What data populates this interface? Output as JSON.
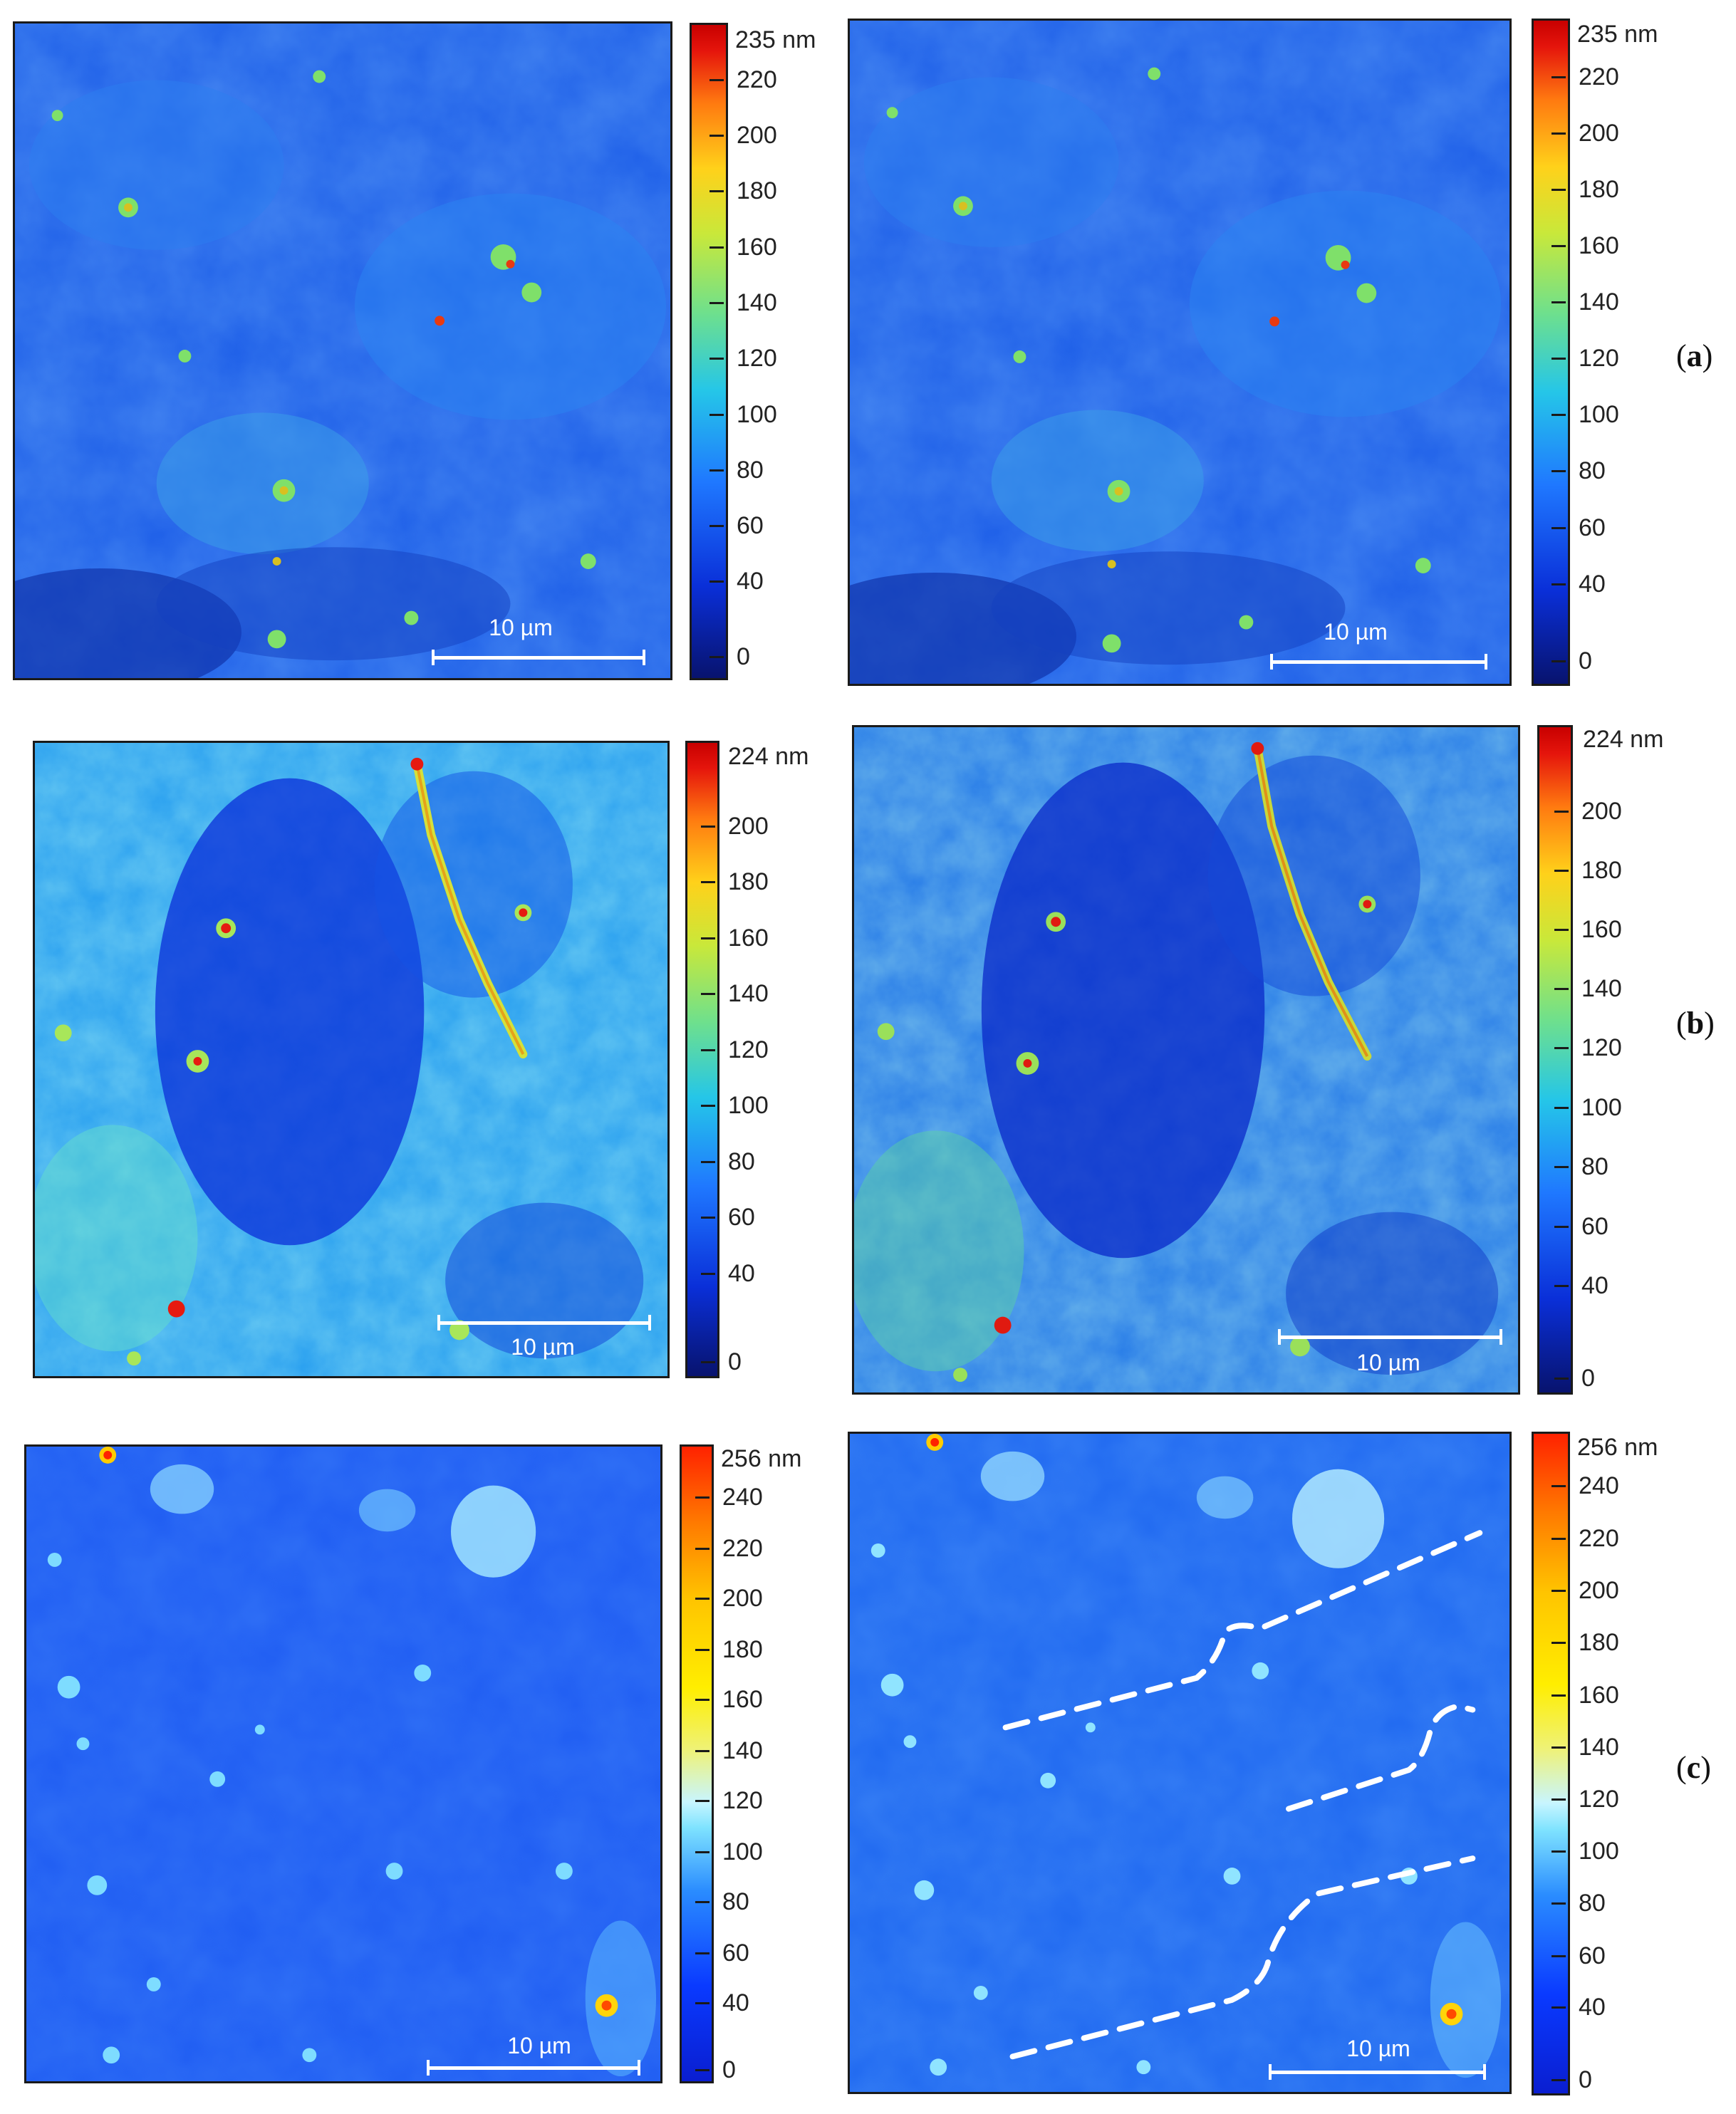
{
  "panels": [
    {
      "label_open": "(",
      "label_letter": "a",
      "label_close": ")",
      "colorbar_max_label": "235 nm",
      "colorbar_ticks": [
        "220",
        "200",
        "180",
        "160",
        "140",
        "120",
        "100",
        "80",
        "60",
        "40",
        "0"
      ],
      "scalebar_label": "10 µm",
      "palette": "jet"
    },
    {
      "label_open": "(",
      "label_letter": "b",
      "label_close": ")",
      "colorbar_max_label": "224 nm",
      "colorbar_ticks": [
        "200",
        "180",
        "160",
        "140",
        "120",
        "100",
        "80",
        "60",
        "40",
        "0"
      ],
      "scalebar_label": "10 µm",
      "palette": "jet"
    },
    {
      "label_open": "(",
      "label_letter": "c",
      "label_close": ")",
      "colorbar_max_label": "256 nm",
      "colorbar_ticks": [
        "240",
        "220",
        "200",
        "180",
        "160",
        "140",
        "120",
        "100",
        "80",
        "60",
        "40",
        "0"
      ],
      "scalebar_label": "10 µm",
      "palette": "bright-blue",
      "right_map_overlay": "white dashed boundary lines"
    }
  ],
  "colors": {
    "dashed_overlay": "#ffffff",
    "background": "#ffffff"
  }
}
